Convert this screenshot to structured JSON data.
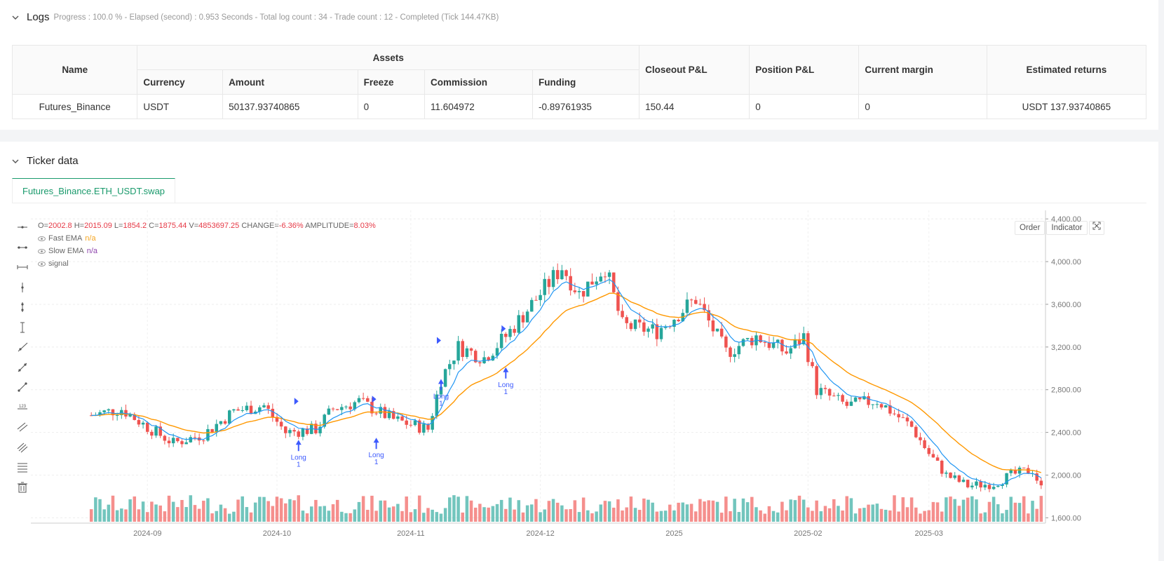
{
  "logs": {
    "title": "Logs",
    "meta": "Progress : 100.0 % - Elapsed (second) : 0.953 Seconds - Total log count : 34 - Trade count : 12 - Completed (Tick 144.47KB)"
  },
  "assets_table": {
    "h_name": "Name",
    "h_assets": "Assets",
    "h_closeout": "Closeout P&L",
    "h_position": "Position P&L",
    "h_margin": "Current margin",
    "h_returns": "Estimated returns",
    "h_currency": "Currency",
    "h_amount": "Amount",
    "h_freeze": "Freeze",
    "h_commission": "Commission",
    "h_funding": "Funding",
    "row": {
      "name": "Futures_Binance",
      "currency": "USDT",
      "amount": "50137.93740865",
      "freeze": "0",
      "commission": "11.604972",
      "funding": "-0.89761935",
      "closeout": "150.44",
      "position": "0",
      "margin": "0",
      "returns": "USDT 137.93740865"
    }
  },
  "ticker": {
    "title": "Ticker data",
    "tab": "Futures_Binance.ETH_USDT.swap",
    "btn_order": "Order",
    "btn_indicator": "Indicator",
    "legend": {
      "o_label": "O=",
      "o": "2002.8",
      "h_label": "H=",
      "h": "2015.09",
      "l_label": "L=",
      "l": "1854.2",
      "c_label": "C=",
      "c": "1875.44",
      "v_label": "V=",
      "v": "4853697.25",
      "change_label": "CHANGE=",
      "change": "-6.36%",
      "amp_label": "AMPLITUDE=",
      "amp": "8.03%",
      "fast": "Fast EMA",
      "fast_val": "n/a",
      "slow": "Slow EMA",
      "slow_val": "n/a",
      "signal": "signal"
    }
  },
  "colors": {
    "up": "#26a69a",
    "down": "#ef5350",
    "fast_ema": "#2196f3",
    "slow_ema": "#ff9800",
    "signal": "#3d5afe",
    "accent": "#1a9a6c"
  },
  "chart_data": {
    "type": "candlestick",
    "y_ticks": [
      "4,400.00",
      "4,000.00",
      "3,600.00",
      "3,200.00",
      "2,800.00",
      "2,400.00",
      "2,000.00",
      "1,600.00"
    ],
    "x_ticks": [
      "2024-09",
      "2024-10",
      "2024-11",
      "2024-12",
      "2025",
      "2025-02",
      "2025-03"
    ],
    "ylim": [
      1550,
      4480
    ],
    "grid": true,
    "series": [
      {
        "name": "Fast EMA"
      },
      {
        "name": "Slow EMA"
      },
      {
        "name": "signal"
      }
    ],
    "anchors": [
      {
        "date": "2024-08-19",
        "close": 2560
      },
      {
        "date": "2024-08-26",
        "close": 2620
      },
      {
        "date": "2024-09-01",
        "close": 2450
      },
      {
        "date": "2024-09-07",
        "close": 2300
      },
      {
        "date": "2024-09-14",
        "close": 2380
      },
      {
        "date": "2024-09-21",
        "close": 2600
      },
      {
        "date": "2024-09-28",
        "close": 2650
      },
      {
        "date": "2024-10-03",
        "close": 2400
      },
      {
        "date": "2024-10-10",
        "close": 2430
      },
      {
        "date": "2024-10-14",
        "close": 2620
      },
      {
        "date": "2024-10-20",
        "close": 2690
      },
      {
        "date": "2024-10-28",
        "close": 2520
      },
      {
        "date": "2024-11-05",
        "close": 2430
      },
      {
        "date": "2024-11-08",
        "close": 2900
      },
      {
        "date": "2024-11-12",
        "close": 3200
      },
      {
        "date": "2024-11-18",
        "close": 3100
      },
      {
        "date": "2024-11-23",
        "close": 3300
      },
      {
        "date": "2024-11-29",
        "close": 3600
      },
      {
        "date": "2024-12-06",
        "close": 3950
      },
      {
        "date": "2024-12-10",
        "close": 3700
      },
      {
        "date": "2024-12-16",
        "close": 3950
      },
      {
        "date": "2024-12-20",
        "close": 3400
      },
      {
        "date": "2024-12-28",
        "close": 3350
      },
      {
        "date": "2025-01-06",
        "close": 3650
      },
      {
        "date": "2025-01-13",
        "close": 3150
      },
      {
        "date": "2025-01-20",
        "close": 3300
      },
      {
        "date": "2025-01-27",
        "close": 3150
      },
      {
        "date": "2025-01-31",
        "close": 3300
      },
      {
        "date": "2025-02-03",
        "close": 2800
      },
      {
        "date": "2025-02-10",
        "close": 2650
      },
      {
        "date": "2025-02-17",
        "close": 2700
      },
      {
        "date": "2025-02-25",
        "close": 2450
      },
      {
        "date": "2025-03-01",
        "close": 2200
      },
      {
        "date": "2025-03-05",
        "close": 2000
      },
      {
        "date": "2025-03-10",
        "close": 1900
      },
      {
        "date": "2025-03-16",
        "close": 1920
      },
      {
        "date": "2025-03-20",
        "close": 2000
      },
      {
        "date": "2025-03-25",
        "close": 2050
      },
      {
        "date": "2025-03-27",
        "close": 1875
      }
    ],
    "signals": [
      {
        "label": "Long",
        "sub": "1",
        "date": "2024-10-06",
        "price": 2330
      },
      {
        "label": "Long",
        "sub": "1",
        "date": "2024-10-24",
        "price": 2350
      },
      {
        "label": "Long",
        "sub": "1",
        "date": "2024-11-08",
        "price": 2900
      },
      {
        "label": "Long",
        "sub": "1",
        "date": "2024-11-23",
        "price": 3010
      }
    ]
  }
}
